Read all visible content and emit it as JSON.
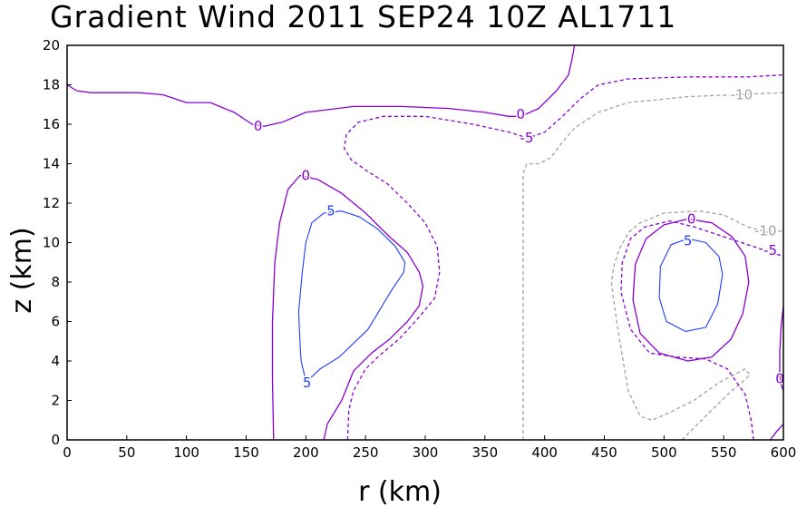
{
  "chart_data": {
    "type": "contour",
    "title": "Gradient Wind 2011 SEP24 10Z  AL1711",
    "xlabel": "r (km)",
    "ylabel": "z (km)",
    "xlim": [
      0,
      600
    ],
    "ylim": [
      0,
      20
    ],
    "x_ticks": [
      0,
      50,
      100,
      150,
      200,
      250,
      300,
      350,
      400,
      450,
      500,
      550,
      600
    ],
    "y_ticks": [
      0,
      2,
      4,
      6,
      8,
      10,
      12,
      14,
      16,
      18,
      20
    ],
    "colors": {
      "0": "#8a00d4",
      "5": "#1e3cff",
      "-5": "#8a00d4",
      "-10": "#a0a0a0",
      "axis": "#000000"
    },
    "contours": [
      {
        "id": "zero-top",
        "level": 0,
        "style": "solid",
        "points": [
          [
            0,
            18
          ],
          [
            8,
            17.7
          ],
          [
            20,
            17.6
          ],
          [
            40,
            17.6
          ],
          [
            60,
            17.6
          ],
          [
            80,
            17.5
          ],
          [
            100,
            17.1
          ],
          [
            120,
            17.1
          ],
          [
            140,
            16.6
          ],
          [
            155,
            16
          ],
          [
            165,
            15.9
          ],
          [
            180,
            16.1
          ],
          [
            200,
            16.6
          ],
          [
            240,
            16.9
          ],
          [
            280,
            16.9
          ],
          [
            320,
            16.8
          ],
          [
            350,
            16.6
          ],
          [
            370,
            16.4
          ],
          [
            380,
            16.4
          ],
          [
            395,
            16.8
          ],
          [
            410,
            17.7
          ],
          [
            420,
            18.5
          ],
          [
            423,
            19.3
          ],
          [
            425,
            20
          ]
        ]
      },
      {
        "id": "zero-inner",
        "level": 0,
        "style": "solid",
        "points": [
          [
            173,
            0
          ],
          [
            172,
            3
          ],
          [
            172,
            6
          ],
          [
            174,
            9
          ],
          [
            178,
            11
          ],
          [
            185,
            12.7
          ],
          [
            195,
            13.4
          ],
          [
            210,
            13.2
          ],
          [
            230,
            12.5
          ],
          [
            250,
            11.5
          ],
          [
            270,
            10.3
          ],
          [
            285,
            9.5
          ],
          [
            295,
            8.5
          ],
          [
            298,
            7.8
          ],
          [
            295,
            6.8
          ],
          [
            285,
            6
          ],
          [
            270,
            5.1
          ],
          [
            255,
            4.4
          ],
          [
            240,
            3.5
          ],
          [
            230,
            2
          ],
          [
            218,
            0.8
          ],
          [
            215,
            0
          ]
        ]
      },
      {
        "id": "minus5-inner",
        "level": -5,
        "style": "dashed",
        "points": [
          [
            235,
            0
          ],
          [
            236,
            1.5
          ],
          [
            240,
            2.5
          ],
          [
            250,
            3.6
          ],
          [
            262,
            4.3
          ],
          [
            278,
            5.1
          ],
          [
            296,
            6.3
          ],
          [
            308,
            7.2
          ],
          [
            312,
            8.5
          ],
          [
            310,
            9.8
          ],
          [
            300,
            11
          ],
          [
            285,
            12
          ],
          [
            268,
            13
          ],
          [
            252,
            13.6
          ],
          [
            238,
            14.2
          ],
          [
            232,
            14.8
          ],
          [
            234,
            15.5
          ],
          [
            244,
            16.1
          ],
          [
            265,
            16.4
          ],
          [
            300,
            16.4
          ],
          [
            340,
            16
          ],
          [
            370,
            15.6
          ],
          [
            386,
            15.3
          ],
          [
            400,
            15.6
          ],
          [
            415,
            16.4
          ],
          [
            430,
            17.3
          ],
          [
            445,
            18
          ],
          [
            470,
            18.3
          ],
          [
            520,
            18.4
          ],
          [
            570,
            18.4
          ],
          [
            600,
            18.5
          ]
        ]
      },
      {
        "id": "plus5-inner",
        "level": 5,
        "style": "solid",
        "points": [
          [
            200,
            3
          ],
          [
            205,
            3.2
          ],
          [
            212,
            3.6
          ],
          [
            228,
            4.2
          ],
          [
            252,
            5.6
          ],
          [
            272,
            7.6
          ],
          [
            282,
            8.5
          ],
          [
            283,
            9
          ],
          [
            275,
            9.8
          ],
          [
            260,
            10.7
          ],
          [
            245,
            11.3
          ],
          [
            230,
            11.6
          ],
          [
            215,
            11.5
          ],
          [
            205,
            11
          ],
          [
            200,
            10
          ],
          [
            197,
            8.5
          ],
          [
            194,
            6.5
          ],
          [
            195,
            5
          ],
          [
            196,
            4
          ],
          [
            200,
            3
          ]
        ]
      },
      {
        "id": "minus10-center",
        "level": -10,
        "style": "dashed",
        "points": [
          [
            382,
            0
          ],
          [
            382,
            3
          ],
          [
            382,
            7
          ],
          [
            382,
            11
          ],
          [
            382,
            13.5
          ],
          [
            385,
            14
          ],
          [
            395,
            14
          ],
          [
            405,
            14.3
          ],
          [
            415,
            15.1
          ],
          [
            425,
            15.8
          ],
          [
            445,
            16.6
          ],
          [
            470,
            17.1
          ],
          [
            520,
            17.4
          ],
          [
            560,
            17.5
          ],
          [
            600,
            17.6
          ]
        ]
      },
      {
        "id": "minus10-right",
        "level": -10,
        "style": "dashed",
        "points": [
          [
            515,
            0
          ],
          [
            520,
            0.3
          ],
          [
            538,
            1.4
          ],
          [
            555,
            2.4
          ],
          [
            565,
            2.9
          ],
          [
            572,
            3.3
          ],
          [
            568,
            3.6
          ],
          [
            546,
            2.9
          ],
          [
            525,
            2
          ],
          [
            505,
            1.4
          ],
          [
            490,
            1
          ],
          [
            480,
            1.2
          ],
          [
            470,
            2.5
          ],
          [
            463,
            5
          ],
          [
            458,
            7
          ],
          [
            456,
            8
          ],
          [
            458,
            8.8
          ],
          [
            462,
            9.6
          ],
          [
            470,
            10.5
          ],
          [
            480,
            11
          ],
          [
            500,
            11.5
          ],
          [
            530,
            11.6
          ],
          [
            550,
            11.4
          ],
          [
            570,
            10.8
          ],
          [
            588,
            10.5
          ],
          [
            600,
            10.6
          ]
        ]
      },
      {
        "id": "minus5-right",
        "level": -5,
        "style": "dashed",
        "points": [
          [
            575,
            0
          ],
          [
            573,
            1
          ],
          [
            568,
            2.3
          ],
          [
            553,
            3.6
          ],
          [
            535,
            4.1
          ],
          [
            510,
            4.2
          ],
          [
            488,
            4.4
          ],
          [
            472,
            5.6
          ],
          [
            464,
            7.5
          ],
          [
            465,
            9
          ],
          [
            472,
            10.2
          ],
          [
            484,
            10.8
          ],
          [
            505,
            11.1
          ],
          [
            525,
            10.8
          ],
          [
            545,
            10.4
          ],
          [
            565,
            10
          ],
          [
            585,
            9.6
          ],
          [
            600,
            9.3
          ]
        ]
      },
      {
        "id": "zero-right",
        "level": 0,
        "style": "solid",
        "points": [
          [
            520,
            4
          ],
          [
            540,
            4.2
          ],
          [
            556,
            5.1
          ],
          [
            566,
            6.4
          ],
          [
            571,
            8
          ],
          [
            568,
            9.3
          ],
          [
            557,
            10.3
          ],
          [
            540,
            11
          ],
          [
            520,
            11.2
          ],
          [
            500,
            10.9
          ],
          [
            485,
            10.2
          ],
          [
            476,
            8.9
          ],
          [
            474,
            7.1
          ],
          [
            480,
            5.4
          ],
          [
            496,
            4.4
          ],
          [
            520,
            4
          ]
        ]
      },
      {
        "id": "plus5-right",
        "level": 5,
        "style": "solid",
        "points": [
          [
            518,
            5.5
          ],
          [
            535,
            5.7
          ],
          [
            545,
            6.9
          ],
          [
            549,
            8.4
          ],
          [
            546,
            9.3
          ],
          [
            535,
            10
          ],
          [
            520,
            10.2
          ],
          [
            506,
            9.9
          ],
          [
            497,
            8.8
          ],
          [
            496,
            7.2
          ],
          [
            502,
            6
          ],
          [
            518,
            5.5
          ]
        ]
      },
      {
        "id": "zero-right-edge",
        "level": 0,
        "style": "solid",
        "points": [
          [
            600,
            6.8
          ],
          [
            598,
            5.7
          ],
          [
            597,
            4.5
          ],
          [
            597,
            3.3
          ],
          [
            598,
            2.8
          ],
          [
            600,
            2.5
          ]
        ]
      },
      {
        "id": "zero-bottom-right",
        "level": 0,
        "style": "solid",
        "points": [
          [
            589,
            0
          ],
          [
            594,
            0.4
          ],
          [
            600,
            0.8
          ]
        ]
      }
    ],
    "contour_labels": [
      {
        "text": "0",
        "x": 160,
        "y": 15.9,
        "level": 0
      },
      {
        "text": "0",
        "x": 380,
        "y": 16.5,
        "level": 0
      },
      {
        "text": "0",
        "x": 200,
        "y": 13.4,
        "level": 0
      },
      {
        "text": "0",
        "x": 523,
        "y": 11.2,
        "level": 0
      },
      {
        "text": "0",
        "x": 597,
        "y": 3.1,
        "level": 0
      },
      {
        "text": "-5",
        "x": 385,
        "y": 15.3,
        "level": -5
      },
      {
        "text": "-5",
        "x": 589,
        "y": 9.6,
        "level": -5
      },
      {
        "text": "5",
        "x": 221,
        "y": 11.6,
        "level": 5
      },
      {
        "text": "5",
        "x": 201,
        "y": 2.9,
        "level": 5
      },
      {
        "text": "5",
        "x": 520,
        "y": 10.1,
        "level": 5
      },
      {
        "text": "-10",
        "x": 565,
        "y": 17.5,
        "level": -10
      },
      {
        "text": "-10",
        "x": 585,
        "y": 10.6,
        "level": -10
      }
    ]
  }
}
